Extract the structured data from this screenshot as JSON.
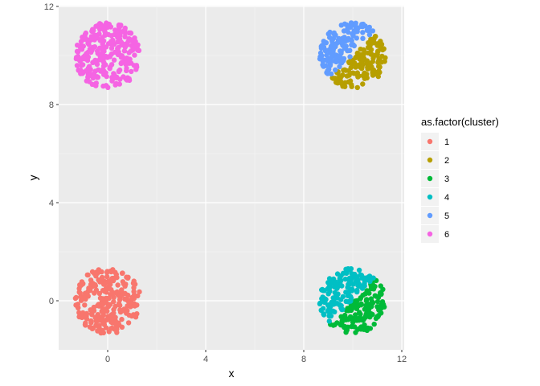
{
  "chart_data": {
    "type": "scatter",
    "title": "",
    "xlabel": "x",
    "ylabel": "y",
    "xlim": [
      -2,
      12
    ],
    "ylim": [
      -2,
      12
    ],
    "x_ticks": [
      0,
      4,
      8,
      12
    ],
    "y_ticks": [
      0,
      4,
      8,
      12
    ],
    "x_tick_labels": [
      "0",
      "4",
      "8",
      "12"
    ],
    "y_tick_labels": [
      "0",
      "4",
      "8",
      "12"
    ],
    "grid": true,
    "legend": {
      "title": "as.factor(cluster)",
      "placement": "right"
    },
    "series": [
      {
        "name": "1",
        "color": "#F8766D",
        "center": [
          0,
          0
        ],
        "radius": 1.35,
        "n": 260,
        "region": "full"
      },
      {
        "name": "2",
        "color": "#B79F00",
        "center": [
          10,
          10
        ],
        "radius": 1.35,
        "n": 140,
        "region": "lower-right-half"
      },
      {
        "name": "3",
        "color": "#00BA38",
        "center": [
          10,
          0
        ],
        "radius": 1.35,
        "n": 140,
        "region": "lower-right-half"
      },
      {
        "name": "4",
        "color": "#00BFC4",
        "center": [
          10,
          0
        ],
        "radius": 1.35,
        "n": 130,
        "region": "upper-left-half"
      },
      {
        "name": "5",
        "color": "#619CFF",
        "center": [
          10,
          10
        ],
        "radius": 1.35,
        "n": 130,
        "region": "upper-left-half"
      },
      {
        "name": "6",
        "color": "#F564E3",
        "center": [
          0,
          10
        ],
        "radius": 1.35,
        "n": 260,
        "region": "full"
      }
    ]
  }
}
